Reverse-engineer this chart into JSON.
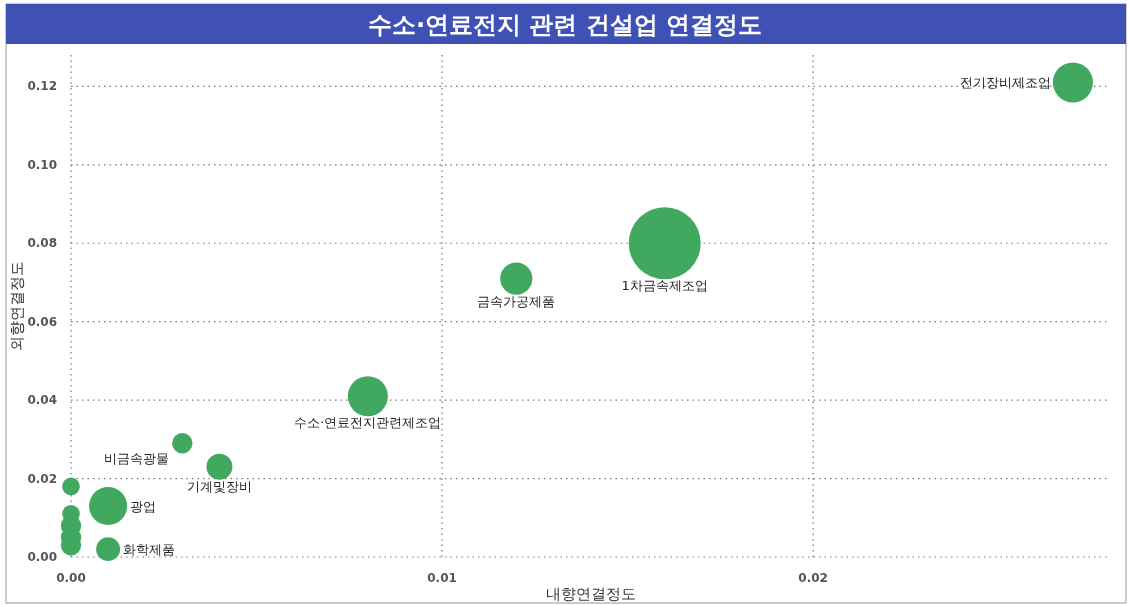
{
  "chart_data": {
    "type": "bubble",
    "title": "수소·연료전지 관련 건설업 연결정도",
    "xlabel": "내향연결정도",
    "ylabel": "외향연결정도",
    "x": [
      0.027,
      0.016,
      0.012,
      0.008,
      0.003,
      0.004,
      0.001,
      0.001,
      0,
      0,
      0,
      0,
      0
    ],
    "values": [
      0.121,
      0.08,
      0.071,
      0.041,
      0.029,
      0.023,
      0.013,
      0.002,
      0.018,
      0.011,
      0.008,
      0.005,
      0.003
    ],
    "sizes": [
      0.31,
      1,
      0.2,
      0.31,
      0.08,
      0.13,
      0.28,
      0.11,
      0.06,
      0.06,
      0.08,
      0.08,
      0.08
    ],
    "annotations": [
      {
        "text": "전기장비제조업",
        "x": 0.027,
        "y": 0.121
      },
      {
        "text": "1차금속제조업",
        "x": 0.016,
        "y": 0.08
      },
      {
        "text": "금속가공제품",
        "x": 0.012,
        "y": 0.071
      },
      {
        "text": "수소·연료전지관련제조업",
        "x": 0.008,
        "y": 0.041
      },
      {
        "text": "비금속광물",
        "x": 0.003,
        "y": 0.029
      },
      {
        "text": "기계및장비",
        "x": 0.004,
        "y": 0.023
      },
      {
        "text": "광업",
        "x": 0.001,
        "y": 0.013
      },
      {
        "text": "화학제품",
        "x": 0.001,
        "y": 0.002
      }
    ],
    "color": "#41a85f",
    "xlim": [
      0,
      0.028
    ],
    "ylim": [
      0,
      0.128
    ],
    "xticks": [
      {
        "value": 0,
        "label": "0.00"
      },
      {
        "value": 0.01,
        "label": "0.01"
      },
      {
        "value": 0.02,
        "label": "0.02"
      }
    ],
    "yticks": [
      {
        "value": 0,
        "label": "0.00"
      },
      {
        "value": 0.02,
        "label": "0.02"
      },
      {
        "value": 0.04,
        "label": "0.04"
      },
      {
        "value": 0.06,
        "label": "0.06"
      },
      {
        "value": 0.08,
        "label": "0.08"
      },
      {
        "value": 0.1,
        "label": "0.10"
      },
      {
        "value": 0.12,
        "label": "0.12"
      }
    ],
    "grid": true
  }
}
